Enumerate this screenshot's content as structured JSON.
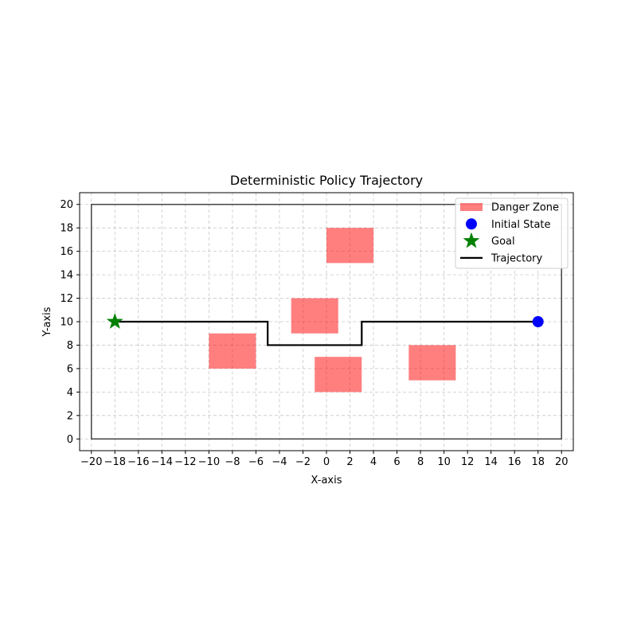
{
  "chart_data": {
    "type": "scatter",
    "title": "Deterministic Policy Trajectory",
    "xlabel": "X-axis",
    "ylabel": "Y-axis",
    "xlim": [
      -21,
      21
    ],
    "ylim": [
      -1,
      21
    ],
    "xticks": [
      -20,
      -18,
      -16,
      -14,
      -12,
      -10,
      -8,
      -6,
      -4,
      -2,
      0,
      2,
      4,
      6,
      8,
      10,
      12,
      14,
      16,
      18,
      20
    ],
    "yticks": [
      0,
      2,
      4,
      6,
      8,
      10,
      12,
      14,
      16,
      18,
      20
    ],
    "grid": true,
    "legend_position": "top-right",
    "boundary": {
      "x": [
        -20,
        20
      ],
      "y": [
        0,
        20
      ]
    },
    "danger_zones": [
      {
        "x": [
          0,
          4
        ],
        "y": [
          15,
          18
        ]
      },
      {
        "x": [
          -3,
          1
        ],
        "y": [
          9,
          12
        ]
      },
      {
        "x": [
          -10,
          -6
        ],
        "y": [
          6,
          9
        ]
      },
      {
        "x": [
          -1,
          3
        ],
        "y": [
          4,
          7
        ]
      },
      {
        "x": [
          7,
          11
        ],
        "y": [
          5,
          8
        ]
      }
    ],
    "initial_state": {
      "x": 18,
      "y": 10
    },
    "goal": {
      "x": -18,
      "y": 10
    },
    "trajectory": [
      {
        "x": 18,
        "y": 10
      },
      {
        "x": 3,
        "y": 10
      },
      {
        "x": 3,
        "y": 8
      },
      {
        "x": -5,
        "y": 8
      },
      {
        "x": -5,
        "y": 10
      },
      {
        "x": -18,
        "y": 10
      }
    ],
    "legend": [
      {
        "label": "Danger Zone",
        "kind": "patch",
        "color": "#ff8080"
      },
      {
        "label": "Initial State",
        "kind": "dot",
        "color": "#0000ff"
      },
      {
        "label": "Goal",
        "kind": "star",
        "color": "#008000"
      },
      {
        "label": "Trajectory",
        "kind": "line",
        "color": "#000000"
      }
    ]
  }
}
